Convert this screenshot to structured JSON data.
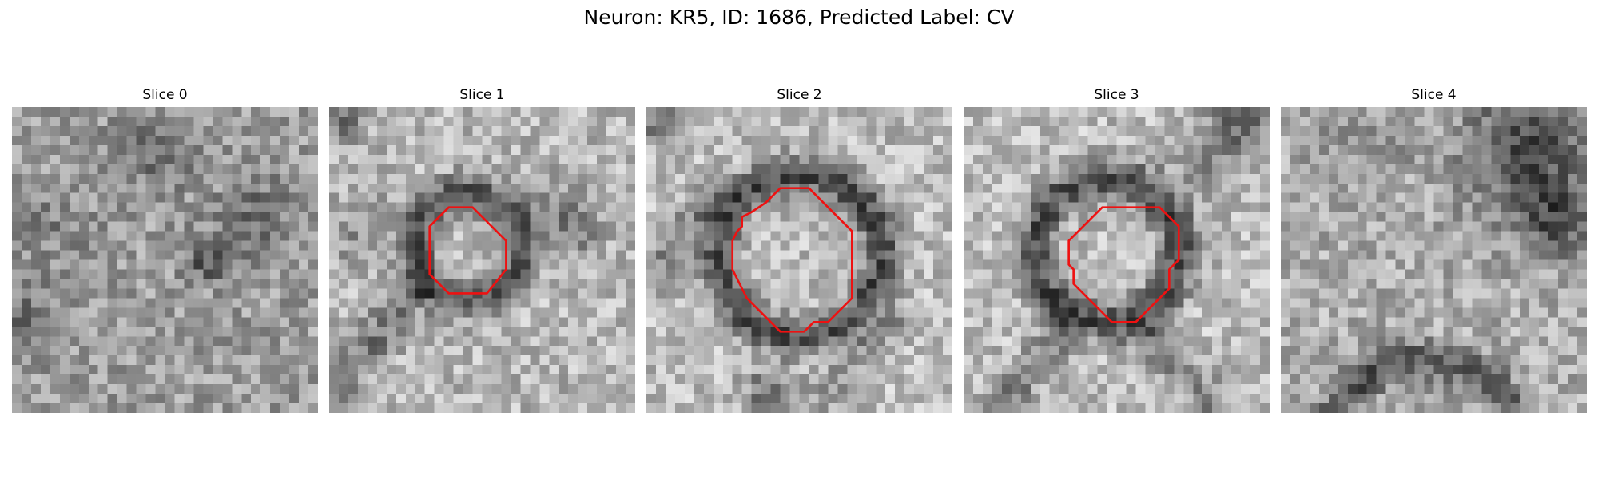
{
  "figure": {
    "title": "Neuron: KR5, ID: 1686, Predicted Label: CV",
    "contour_color": "#ee1111",
    "colormap": "grayscale",
    "panels": [
      {
        "title": "Slice 0",
        "has_contour": false
      },
      {
        "title": "Slice 1",
        "has_contour": true
      },
      {
        "title": "Slice 2",
        "has_contour": true
      },
      {
        "title": "Slice 3",
        "has_contour": true
      },
      {
        "title": "Slice 4",
        "has_contour": false
      }
    ]
  }
}
